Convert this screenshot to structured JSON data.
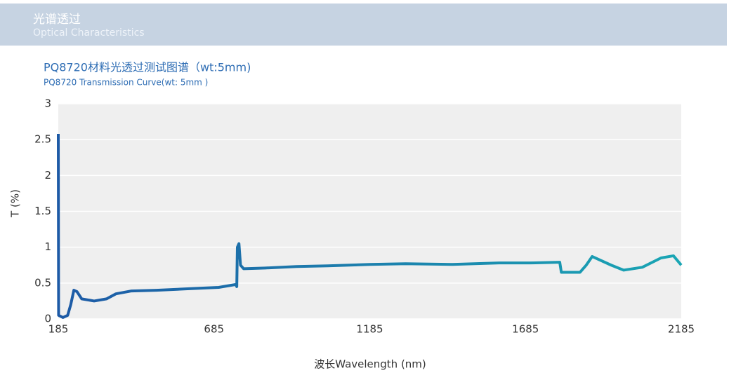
{
  "header": {
    "title": "光谱透过",
    "subtitle": "Optical Characteristics"
  },
  "chart_data": {
    "type": "line",
    "title": "PQ8720材料光透过测试图谱（wt:5mm)",
    "subtitle": "PQ8720 Transmission Curve(wt: 5mm )",
    "xlabel": "波长Wavelength (nm)",
    "ylabel": "T (%)",
    "x": [
      185,
      186,
      200,
      215,
      225,
      235,
      245,
      260,
      300,
      340,
      370,
      420,
      500,
      600,
      700,
      755,
      758,
      760,
      765,
      770,
      780,
      850,
      950,
      1050,
      1185,
      1300,
      1450,
      1600,
      1700,
      1795,
      1800,
      1860,
      1880,
      1899,
      1960,
      2000,
      2060,
      2120,
      2160,
      2185
    ],
    "values": [
      2.58,
      0.05,
      0.02,
      0.05,
      0.2,
      0.4,
      0.38,
      0.28,
      0.25,
      0.28,
      0.35,
      0.39,
      0.4,
      0.42,
      0.44,
      0.48,
      0.45,
      1.0,
      1.05,
      0.75,
      0.7,
      0.71,
      0.73,
      0.74,
      0.76,
      0.77,
      0.76,
      0.78,
      0.78,
      0.79,
      0.65,
      0.65,
      0.75,
      0.87,
      0.75,
      0.68,
      0.72,
      0.85,
      0.88,
      0.75
    ],
    "colors": [
      "#1d5aa6",
      "#1aa6b4"
    ],
    "xlim": [
      185,
      2185
    ],
    "xticks": [
      185,
      685,
      1185,
      1685,
      2185
    ],
    "ylim": [
      0,
      3
    ],
    "yticks": [
      0,
      0.5,
      1,
      1.5,
      2,
      2.5,
      3
    ],
    "grid": true
  }
}
